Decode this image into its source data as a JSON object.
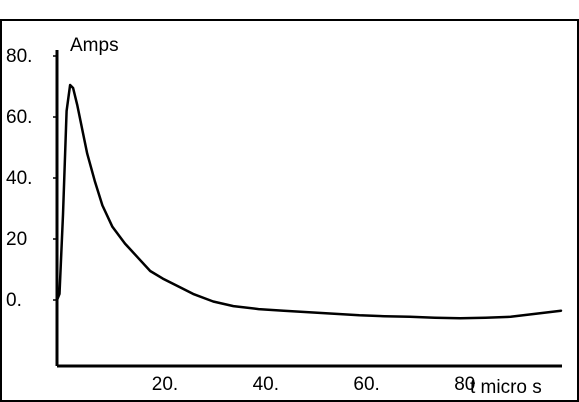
{
  "chart_data": {
    "type": "line",
    "title": "",
    "xlabel": "t micro s",
    "ylabel": "Amps",
    "xlim": [
      0,
      100
    ],
    "ylim": [
      -25,
      80
    ],
    "grid": false,
    "x_ticks": [
      {
        "value": 20,
        "label": "20."
      },
      {
        "value": 40,
        "label": "40."
      },
      {
        "value": 60,
        "label": "60."
      },
      {
        "value": 80,
        "label": "80"
      }
    ],
    "y_ticks": [
      {
        "value": 80,
        "label": "80."
      },
      {
        "value": 60,
        "label": "60."
      },
      {
        "value": 40,
        "label": "40."
      },
      {
        "value": 20,
        "label": "20"
      },
      {
        "value": 0,
        "label": "0."
      }
    ],
    "series": [
      {
        "color": "#000000",
        "x": [
          0.0,
          0.5,
          1.2,
          1.9,
          2.6,
          3.2,
          4.0,
          5.0,
          6.0,
          7.5,
          9.0,
          11.0,
          13.5,
          16.0,
          18.5,
          21.0,
          24.0,
          27.0,
          31.0,
          35.0,
          40.0,
          45.0,
          50.0,
          55.0,
          60.0,
          65.0,
          70.0,
          75.0,
          80.0,
          85.0,
          90.0,
          95.0,
          100.0
        ],
        "y": [
          0.0,
          2.0,
          28.0,
          62.0,
          70.5,
          69.5,
          64.0,
          56.0,
          48.0,
          39.0,
          31.0,
          24.0,
          18.5,
          14.0,
          9.5,
          7.0,
          4.5,
          2.0,
          -0.5,
          -2.0,
          -3.0,
          -3.5,
          -4.0,
          -4.5,
          -5.0,
          -5.3,
          -5.5,
          -5.8,
          -6.0,
          -5.8,
          -5.5,
          -4.5,
          -3.5
        ]
      }
    ]
  }
}
